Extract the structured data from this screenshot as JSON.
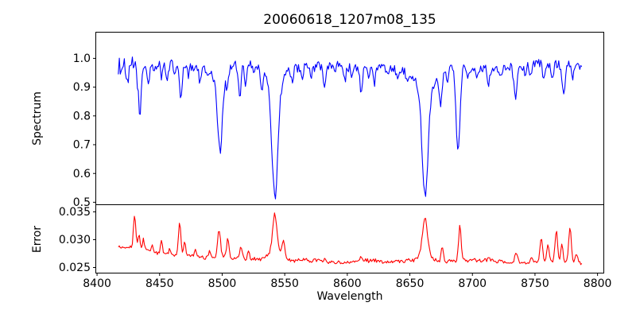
{
  "background": "#ffffff",
  "chart_data": {
    "type": "line",
    "title": "20060618_1207m08_135",
    "xlabel": "Wavelength",
    "legend": "none",
    "grid": false,
    "xlim": [
      8399,
      8805
    ],
    "xticks": [
      "8400",
      "8450",
      "8500",
      "8550",
      "8600",
      "8650",
      "8700",
      "8750",
      "8800"
    ],
    "x_range_data": [
      8417,
      8788
    ],
    "sample_step": 0.8,
    "subplots": [
      {
        "name": "spectrum",
        "ylabel": "Spectrum",
        "color": "#0000ff",
        "ylim": [
          0.4914,
          1.0909
        ],
        "yticks": [
          "1.0",
          "0.9",
          "0.8",
          "0.7",
          "0.6",
          "0.5"
        ],
        "ref_level": 0.975,
        "baseline": [
          [
            8417,
            0.966
          ],
          [
            8428,
            0.975
          ],
          [
            8445,
            0.972
          ],
          [
            8470,
            0.978
          ],
          [
            8500,
            0.975
          ],
          [
            8530,
            0.975
          ],
          [
            8560,
            0.978
          ],
          [
            8600,
            0.972
          ],
          [
            8640,
            0.975
          ],
          [
            8680,
            0.975
          ],
          [
            8720,
            0.973
          ],
          [
            8750,
            0.976
          ],
          [
            8788,
            0.97
          ]
        ],
        "noise_amplitude": 0.019,
        "noise_seed": 1234,
        "noise_boost": [
          {
            "from": 8417,
            "to": 8433,
            "factor": 1.9
          }
        ],
        "absorption_lines": [
          [
            8424.5,
            0.9,
            0.9
          ],
          [
            8434.0,
            0.795,
            1.2
          ],
          [
            8441.0,
            0.925,
            0.9
          ],
          [
            8446.0,
            0.945,
            0.8
          ],
          [
            8451.5,
            0.93,
            0.9
          ],
          [
            8456.0,
            0.915,
            1.0
          ],
          [
            8462.0,
            0.945,
            0.8
          ],
          [
            8467.0,
            0.85,
            1.1
          ],
          [
            8473.0,
            0.94,
            0.8
          ],
          [
            8482.0,
            0.93,
            0.9
          ],
          [
            8488.0,
            0.945,
            0.8
          ],
          [
            8498.2,
            0.735,
            1.8
          ],
          [
            8498.2,
            0.915,
            5.0
          ],
          [
            8504.0,
            0.935,
            0.9
          ],
          [
            8514.0,
            0.85,
            1.1
          ],
          [
            8518.5,
            0.905,
            0.9
          ],
          [
            8525.0,
            0.94,
            0.8
          ],
          [
            8531.5,
            0.91,
            1.0
          ],
          [
            8542.1,
            0.6,
            2.3
          ],
          [
            8542.1,
            0.895,
            7.0
          ],
          [
            8556.0,
            0.935,
            0.9
          ],
          [
            8564.0,
            0.945,
            0.8
          ],
          [
            8571.0,
            0.94,
            0.8
          ],
          [
            8582.0,
            0.9,
            1.1
          ],
          [
            8590.0,
            0.945,
            0.8
          ],
          [
            8598.0,
            0.925,
            0.9
          ],
          [
            8604.0,
            0.945,
            0.8
          ],
          [
            8611.0,
            0.9,
            1.1
          ],
          [
            8617.0,
            0.94,
            0.8
          ],
          [
            8621.5,
            0.925,
            0.9
          ],
          [
            8632.0,
            0.94,
            0.8
          ],
          [
            8640.0,
            0.945,
            0.8
          ],
          [
            8648.0,
            0.935,
            0.9
          ],
          [
            8662.2,
            0.615,
            2.4
          ],
          [
            8662.2,
            0.9,
            7.5
          ],
          [
            8674.5,
            0.87,
            1.1
          ],
          [
            8680.0,
            0.94,
            0.8
          ],
          [
            8688.5,
            0.67,
            1.5
          ],
          [
            8696.0,
            0.94,
            0.8
          ],
          [
            8704.0,
            0.945,
            0.8
          ],
          [
            8713.0,
            0.925,
            0.9
          ],
          [
            8722.0,
            0.935,
            0.9
          ],
          [
            8734.5,
            0.87,
            1.2
          ],
          [
            8742.0,
            0.94,
            0.8
          ],
          [
            8747.0,
            0.93,
            0.9
          ],
          [
            8757.0,
            0.91,
            1.0
          ],
          [
            8764.0,
            0.94,
            0.8
          ],
          [
            8773.0,
            0.855,
            1.2
          ],
          [
            8780.0,
            0.925,
            0.9
          ]
        ]
      },
      {
        "name": "error",
        "ylabel": "Error",
        "color": "#ff0000",
        "ylim": [
          0.024,
          0.03629
        ],
        "yticks": [
          "0.035",
          "0.030",
          "0.025"
        ],
        "baseline": [
          [
            8417,
            0.0288
          ],
          [
            8435,
            0.0282
          ],
          [
            8455,
            0.0274
          ],
          [
            8470,
            0.0271
          ],
          [
            8490,
            0.0269
          ],
          [
            8510,
            0.0268
          ],
          [
            8530,
            0.0266
          ],
          [
            8555,
            0.0262
          ],
          [
            8580,
            0.0261
          ],
          [
            8620,
            0.0262
          ],
          [
            8650,
            0.0262
          ],
          [
            8680,
            0.0261
          ],
          [
            8710,
            0.0261
          ],
          [
            8740,
            0.0259
          ],
          [
            8770,
            0.026
          ],
          [
            8788,
            0.0255
          ]
        ],
        "noise_amplitude": 0.0004,
        "noise_seed": 99,
        "peaks": [
          [
            8430.0,
            0.006,
            0.9
          ],
          [
            8433.5,
            0.0025,
            0.8
          ],
          [
            8437.0,
            0.0018,
            0.8
          ],
          [
            8444.0,
            0.0012,
            0.8
          ],
          [
            8451.5,
            0.0024,
            0.9
          ],
          [
            8458.0,
            0.001,
            0.8
          ],
          [
            8466.0,
            0.0062,
            0.9
          ],
          [
            8470.0,
            0.0022,
            0.8
          ],
          [
            8479.0,
            0.001,
            0.8
          ],
          [
            8490.0,
            0.0012,
            0.8
          ],
          [
            8497.5,
            0.0048,
            1.2
          ],
          [
            8504.5,
            0.0034,
            1.0
          ],
          [
            8515.0,
            0.0022,
            1.0
          ],
          [
            8521.0,
            0.0012,
            0.8
          ],
          [
            8542.0,
            0.0062,
            1.6
          ],
          [
            8542.0,
            0.002,
            4.0
          ],
          [
            8549.0,
            0.0028,
            1.2
          ],
          [
            8582.0,
            0.0007,
            0.9
          ],
          [
            8611.0,
            0.0008,
            0.9
          ],
          [
            8662.0,
            0.006,
            1.8
          ],
          [
            8662.0,
            0.002,
            4.5
          ],
          [
            8676.0,
            0.0026,
            0.9
          ],
          [
            8690.0,
            0.0062,
            1.0
          ],
          [
            8713.0,
            0.0008,
            0.9
          ],
          [
            8735.0,
            0.0018,
            1.1
          ],
          [
            8747.0,
            0.0012,
            0.9
          ],
          [
            8755.0,
            0.0042,
            1.0
          ],
          [
            8760.5,
            0.0032,
            0.9
          ],
          [
            8767.0,
            0.0058,
            1.0
          ],
          [
            8771.5,
            0.0028,
            0.9
          ],
          [
            8778.0,
            0.0062,
            1.0
          ],
          [
            8783.0,
            0.0018,
            0.9
          ]
        ]
      }
    ]
  }
}
